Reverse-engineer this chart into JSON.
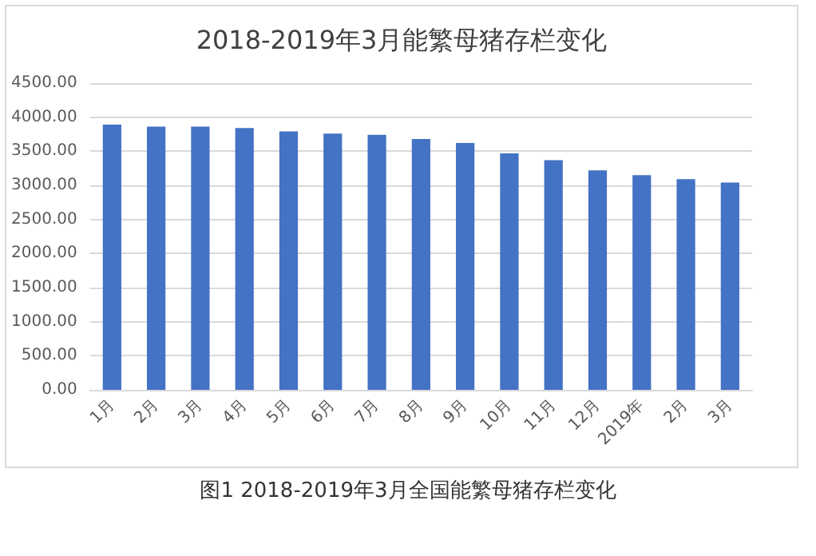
{
  "chart_data": {
    "type": "bar",
    "title": "2018-2019年3月能繁母猪存栏变化",
    "categories": [
      "1月",
      "2月",
      "3月",
      "4月",
      "5月",
      "6月",
      "7月",
      "8月",
      "9月",
      "10月",
      "11月",
      "12月",
      "2019年",
      "2月",
      "3月"
    ],
    "values": [
      3890,
      3860,
      3860,
      3840,
      3790,
      3760,
      3740,
      3680,
      3620,
      3470,
      3370,
      3220,
      3150,
      3090,
      3040
    ],
    "color": "#4472c4",
    "ylim": [
      0,
      4500
    ],
    "yticks": [
      {
        "value": 0,
        "label": "0.00"
      },
      {
        "value": 500,
        "label": "500.00"
      },
      {
        "value": 1000,
        "label": "1000.00"
      },
      {
        "value": 1500,
        "label": "1500.00"
      },
      {
        "value": 2000,
        "label": "2000.00"
      },
      {
        "value": 2500,
        "label": "2500.00"
      },
      {
        "value": 3000,
        "label": "3000.00"
      },
      {
        "value": 3500,
        "label": "3500.00"
      },
      {
        "value": 4000,
        "label": "4000.00"
      },
      {
        "value": 4500,
        "label": "4500.00"
      }
    ],
    "grid": "y",
    "annotations": [
      "图1 2018-2019年3月全国能繁母猪存栏变化"
    ]
  }
}
